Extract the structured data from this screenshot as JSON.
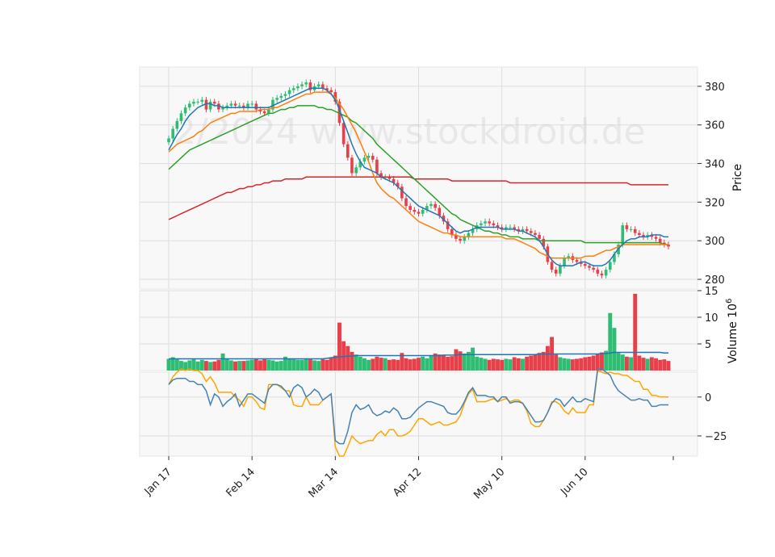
{
  "watermark": "2/2024 www.stockdroid.de",
  "colors": {
    "up": "#2ebd72",
    "down": "#e8404a",
    "ma_short": "#1f77b4",
    "ma_mid": "#ff7f0e",
    "ma_long": "#2ca02c",
    "ma_200": "#d62728",
    "vol_ma": "#1f77b4",
    "osc_fast": "#4682b4",
    "osc_slow": "#ffa500",
    "panel_bg": "#f8f8f8",
    "grid": "#dddddd"
  },
  "chart_data": {
    "type": "candlestick",
    "x_tick_labels": [
      "Jan 17",
      "Feb 14",
      "Mar 14",
      "Apr 12",
      "May 10",
      "Jun 10"
    ],
    "x_tick_index": [
      0,
      20,
      40,
      60,
      80,
      100
    ],
    "price_panel": {
      "ylabel": "Price",
      "ylim": [
        275,
        390
      ],
      "yticks": [
        280,
        300,
        320,
        340,
        360,
        380
      ],
      "closes": [
        353,
        358,
        362,
        366,
        369,
        371,
        372,
        372,
        373,
        368,
        372,
        371,
        368,
        369,
        370,
        371,
        370,
        370,
        369,
        371,
        371,
        368,
        367,
        366,
        368,
        373,
        374,
        375,
        376,
        378,
        379,
        380,
        381,
        382,
        378,
        380,
        381,
        379,
        378,
        377,
        372,
        361,
        350,
        343,
        335,
        338,
        341,
        343,
        344,
        342,
        335,
        333,
        333,
        332,
        330,
        328,
        322,
        318,
        316,
        315,
        314,
        316,
        318,
        319,
        317,
        313,
        310,
        306,
        303,
        301,
        300,
        302,
        304,
        306,
        308,
        309,
        310,
        309,
        308,
        307,
        306,
        307,
        307,
        306,
        305,
        306,
        305,
        304,
        303,
        301,
        297,
        289,
        285,
        283,
        287,
        291,
        292,
        290,
        289,
        288,
        287,
        286,
        285,
        283,
        282,
        285,
        289,
        293,
        298,
        308,
        306,
        306,
        304,
        303,
        302,
        303,
        302,
        301,
        299,
        298,
        297
      ],
      "ma_short": [
        347,
        351,
        355,
        358,
        362,
        365,
        367,
        369,
        370,
        371,
        371,
        370,
        370,
        369,
        369,
        369,
        369,
        369,
        369,
        369,
        369,
        369,
        369,
        369,
        369,
        370,
        371,
        372,
        373,
        374,
        375,
        376,
        377,
        378,
        379,
        379,
        379,
        379,
        378,
        376,
        373,
        368,
        362,
        356,
        350,
        345,
        341,
        338,
        337,
        336,
        335,
        333,
        332,
        331,
        330,
        328,
        326,
        324,
        322,
        320,
        318,
        317,
        316,
        315,
        314,
        313,
        311,
        309,
        307,
        305,
        304,
        305,
        305,
        306,
        307,
        307,
        307,
        307,
        307,
        307,
        306,
        306,
        306,
        306,
        305,
        305,
        304,
        303,
        302,
        300,
        297,
        293,
        290,
        288,
        287,
        287,
        287,
        287,
        288,
        289,
        289,
        288,
        287,
        287,
        287,
        288,
        290,
        293,
        296,
        298,
        300,
        301,
        301,
        302,
        302,
        302,
        303,
        303,
        303,
        302,
        302
      ],
      "ma_mid": [
        346,
        348,
        350,
        351,
        352,
        353,
        354,
        356,
        357,
        359,
        361,
        362,
        363,
        364,
        365,
        366,
        366,
        367,
        367,
        367,
        367,
        367,
        368,
        368,
        368,
        369,
        369,
        370,
        371,
        372,
        373,
        374,
        375,
        376,
        376,
        377,
        377,
        377,
        377,
        376,
        374,
        371,
        368,
        364,
        360,
        356,
        351,
        346,
        341,
        335,
        330,
        327,
        325,
        323,
        322,
        320,
        318,
        316,
        314,
        312,
        310,
        309,
        308,
        307,
        306,
        305,
        304,
        304,
        303,
        303,
        302,
        302,
        302,
        302,
        302,
        302,
        302,
        302,
        302,
        302,
        302,
        301,
        301,
        301,
        300,
        299,
        298,
        297,
        296,
        294,
        293,
        292,
        291,
        291,
        291,
        291,
        291,
        291,
        291,
        291,
        292,
        292,
        292,
        293,
        294,
        295,
        295,
        296,
        297,
        298,
        298,
        298,
        298,
        298,
        298,
        298,
        298,
        298,
        298,
        298,
        298
      ],
      "ma_long": [
        337,
        339,
        341,
        343,
        345,
        347,
        348,
        349,
        350,
        351,
        352,
        353,
        354,
        355,
        356,
        357,
        358,
        359,
        360,
        361,
        362,
        363,
        364,
        365,
        366,
        366,
        367,
        368,
        368,
        369,
        369,
        370,
        370,
        370,
        370,
        370,
        369,
        369,
        368,
        368,
        367,
        366,
        365,
        364,
        362,
        361,
        359,
        357,
        355,
        353,
        350,
        348,
        346,
        344,
        342,
        340,
        338,
        336,
        334,
        332,
        330,
        328,
        326,
        324,
        322,
        320,
        318,
        316,
        314,
        313,
        311,
        310,
        309,
        308,
        307,
        306,
        305,
        305,
        304,
        304,
        303,
        303,
        302,
        302,
        302,
        301,
        301,
        301,
        301,
        300,
        300,
        300,
        300,
        300,
        300,
        300,
        300,
        300,
        300,
        300,
        299,
        299,
        299,
        299,
        299,
        299,
        299,
        299,
        299,
        299,
        299,
        299,
        299,
        299,
        299,
        299,
        299,
        299,
        299,
        298,
        298
      ],
      "ma_200": [
        311,
        312,
        313,
        314,
        315,
        316,
        317,
        318,
        319,
        320,
        321,
        322,
        323,
        324,
        325,
        325,
        326,
        327,
        327,
        328,
        328,
        329,
        329,
        330,
        330,
        331,
        331,
        331,
        332,
        332,
        332,
        332,
        332,
        333,
        333,
        333,
        333,
        333,
        333,
        333,
        333,
        333,
        333,
        333,
        333,
        333,
        333,
        333,
        333,
        333,
        333,
        333,
        333,
        333,
        333,
        333,
        333,
        333,
        333,
        332,
        332,
        332,
        332,
        332,
        332,
        332,
        332,
        332,
        331,
        331,
        331,
        331,
        331,
        331,
        331,
        331,
        331,
        331,
        331,
        331,
        331,
        331,
        330,
        330,
        330,
        330,
        330,
        330,
        330,
        330,
        330,
        330,
        330,
        330,
        330,
        330,
        330,
        330,
        330,
        330,
        330,
        330,
        330,
        330,
        330,
        330,
        330,
        330,
        330,
        330,
        330,
        329,
        329,
        329,
        329,
        329,
        329,
        329,
        329,
        329,
        329
      ]
    },
    "volume_panel": {
      "ylabel": "Volume  10^6",
      "ylim": [
        0,
        15
      ],
      "yticks": [
        5,
        10,
        15
      ],
      "volumes": [
        2.2,
        2.5,
        2.1,
        1.8,
        1.6,
        1.9,
        2.1,
        1.7,
        2.0,
        1.8,
        1.6,
        1.7,
        2.0,
        3.2,
        2.2,
        1.9,
        1.7,
        1.8,
        1.8,
        1.9,
        2.0,
        2.2,
        1.9,
        2.1,
        2.0,
        1.9,
        1.7,
        1.8,
        2.6,
        2.2,
        2.1,
        2.0,
        2.0,
        2.2,
        2.1,
        1.9,
        1.8,
        2.1,
        2.0,
        2.5,
        2.8,
        9.0,
        5.5,
        4.6,
        3.5,
        3.0,
        2.6,
        2.3,
        2.0,
        2.2,
        2.6,
        2.4,
        2.3,
        2.0,
        2.1,
        2.0,
        3.3,
        2.3,
        2.1,
        2.2,
        2.4,
        2.6,
        2.3,
        2.8,
        3.2,
        3.0,
        2.8,
        2.6,
        2.7,
        4.0,
        3.6,
        3.2,
        3.5,
        4.3,
        2.6,
        2.4,
        2.2,
        2.0,
        2.2,
        2.1,
        2.0,
        2.2,
        2.1,
        2.5,
        2.3,
        2.2,
        2.6,
        2.8,
        3.0,
        3.3,
        3.5,
        4.6,
        6.3,
        3.0,
        2.5,
        2.3,
        2.2,
        2.1,
        2.2,
        2.3,
        2.5,
        2.6,
        2.8,
        3.1,
        3.4,
        3.7,
        10.8,
        8.0,
        3.3,
        3.0,
        2.6,
        2.5,
        14.4,
        2.8,
        2.4,
        2.2,
        2.5,
        2.3,
        2.0,
        2.1,
        1.8
      ],
      "vol_ma": [
        2.2,
        2.2,
        2.2,
        2.2,
        2.2,
        2.2,
        2.2,
        2.2,
        2.2,
        2.2,
        2.2,
        2.2,
        2.2,
        2.2,
        2.2,
        2.2,
        2.2,
        2.2,
        2.2,
        2.2,
        2.2,
        2.2,
        2.2,
        2.2,
        2.2,
        2.2,
        2.2,
        2.2,
        2.2,
        2.2,
        2.2,
        2.2,
        2.2,
        2.2,
        2.2,
        2.2,
        2.2,
        2.2,
        2.3,
        2.4,
        2.5,
        2.6,
        2.6,
        2.7,
        2.7,
        2.8,
        2.8,
        2.8,
        2.8,
        2.8,
        2.8,
        2.8,
        2.8,
        2.8,
        2.8,
        2.8,
        2.8,
        2.8,
        2.8,
        2.8,
        2.8,
        2.8,
        2.8,
        2.8,
        2.8,
        2.8,
        2.9,
        2.9,
        2.9,
        2.9,
        3.0,
        3.0,
        3.0,
        3.0,
        3.0,
        3.0,
        3.0,
        3.0,
        3.0,
        3.0,
        3.0,
        3.0,
        3.0,
        3.0,
        3.0,
        3.0,
        3.0,
        3.0,
        3.0,
        3.1,
        3.1,
        3.1,
        3.1,
        3.1,
        3.1,
        3.1,
        3.1,
        3.1,
        3.1,
        3.1,
        3.1,
        3.1,
        3.1,
        3.1,
        3.2,
        3.2,
        3.3,
        3.4,
        3.4,
        3.4,
        3.4,
        3.4,
        3.4,
        3.4,
        3.4,
        3.4,
        3.4,
        3.4,
        3.4,
        3.3,
        3.3
      ]
    },
    "oscillator_panel": {
      "ylim": [
        -38,
        16
      ],
      "yticks": [
        0,
        -25
      ],
      "line_fast": [
        8,
        11,
        12,
        12,
        12,
        10,
        10,
        8,
        8,
        4,
        -5,
        2,
        0,
        -6,
        -3,
        -1,
        2,
        -6,
        -2,
        2,
        2,
        0,
        -2,
        -4,
        5,
        8,
        8,
        7,
        4,
        0,
        6,
        8,
        6,
        0,
        2,
        5,
        3,
        -2,
        0,
        2,
        -28,
        -30,
        -30,
        -22,
        -10,
        -5,
        -8,
        -7,
        -5,
        -10,
        -12,
        -11,
        -9,
        -10,
        -7,
        -9,
        -14,
        -14,
        -13,
        -10,
        -7,
        -5,
        -3,
        -3,
        -4,
        -5,
        -6,
        -10,
        -11,
        -11,
        -8,
        -3,
        3,
        6,
        1,
        1,
        1,
        0,
        0,
        -3,
        0,
        0,
        -4,
        -3,
        -3,
        -4,
        -8,
        -12,
        -16,
        -16,
        -15,
        -10,
        -4,
        -1,
        -2,
        -6,
        -3,
        0,
        -3,
        -3,
        -1,
        -2,
        -3,
        18,
        18,
        16,
        14,
        8,
        4,
        2,
        0,
        -2,
        -2,
        -1,
        -2,
        -2,
        -6,
        -6,
        -5,
        -5,
        -5
      ],
      "line_slow": [
        8,
        13,
        16,
        18,
        17,
        18,
        17,
        17,
        15,
        10,
        13,
        9,
        3,
        3,
        3,
        3,
        0,
        -2,
        -6,
        0,
        0,
        -3,
        -7,
        -8,
        8,
        8,
        8,
        6,
        4,
        4,
        -5,
        -6,
        -6,
        0,
        -5,
        -5,
        -5,
        -2,
        0,
        2,
        -32,
        -38,
        -38,
        -32,
        -25,
        -28,
        -30,
        -29,
        -28,
        -28,
        -24,
        -22,
        -25,
        -21,
        -21,
        -25,
        -25,
        -24,
        -22,
        -18,
        -14,
        -14,
        -16,
        -18,
        -17,
        -16,
        -18,
        -18,
        -17,
        -16,
        -12,
        -4,
        2,
        5,
        -3,
        -3,
        -3,
        -2,
        -1,
        -3,
        -2,
        -1,
        -3,
        -2,
        -2,
        -4,
        -9,
        -17,
        -19,
        -19,
        -15,
        -10,
        -3,
        -3,
        -5,
        -9,
        -11,
        -7,
        -10,
        -10,
        -10,
        -5,
        -5,
        17,
        16,
        15,
        16,
        15,
        15,
        14,
        14,
        12,
        10,
        10,
        5,
        5,
        1,
        1,
        0,
        0,
        0
      ]
    }
  }
}
